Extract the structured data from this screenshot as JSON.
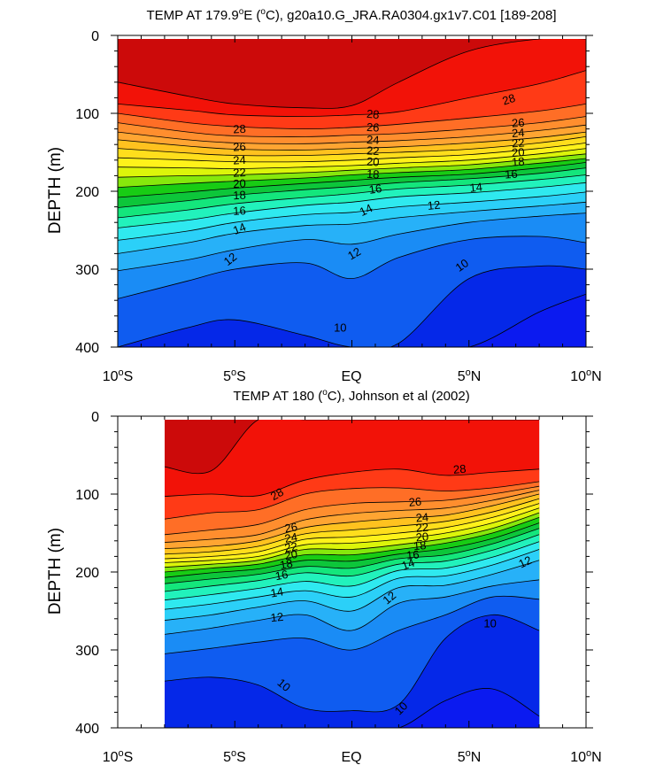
{
  "chart_data": [
    {
      "type": "contour",
      "title": "TEMP AT 179.9°E (°C), g20a10.G_JRA.RA0304.gx1v7.C01 [189-208]",
      "title_parts": {
        "pre": "TEMP AT 179.9",
        "deg1": "o",
        "mid": "E (",
        "deg2": "o",
        "post": "C), g20a10.G_JRA.RA0304.gx1v7.C01 [189-208]"
      },
      "xlabel": "",
      "ylabel": "DEPTH (m)",
      "xlim": [
        -10,
        10
      ],
      "ylim": [
        400,
        0
      ],
      "xticks": [
        {
          "value": -10,
          "num": "10",
          "deg": "o",
          "hem": "S"
        },
        {
          "value": -5,
          "num": "5",
          "deg": "o",
          "hem": "S"
        },
        {
          "value": 0,
          "num": "EQ",
          "deg": "",
          "hem": ""
        },
        {
          "value": 5,
          "num": "5",
          "deg": "o",
          "hem": "N"
        },
        {
          "value": 10,
          "num": "10",
          "deg": "o",
          "hem": "N"
        }
      ],
      "yticks": [
        "0",
        "100",
        "200",
        "300",
        "400"
      ],
      "ytick_values": [
        0,
        100,
        200,
        300,
        400
      ],
      "data_lon_range": [
        -10,
        10
      ],
      "contour_levels": [
        10,
        11,
        12,
        13,
        14,
        15,
        16,
        17,
        18,
        19,
        20,
        21,
        22,
        23,
        24,
        25,
        26,
        27,
        28,
        29
      ],
      "isotherm_depths_m": {
        "lon": [
          -10,
          -7,
          -5,
          -2,
          0,
          2,
          5,
          8,
          10
        ],
        "levels": {
          "29": [
            60,
            78,
            88,
            93,
            90,
            60,
            20,
            0,
            0
          ],
          "28": [
            88,
            96,
            102,
            104,
            102,
            98,
            80,
            62,
            45
          ],
          "27": [
            100,
            112,
            117,
            120,
            118,
            114,
            106,
            97,
            88
          ],
          "26": [
            112,
            124,
            129,
            130,
            128,
            126,
            120,
            112,
            104
          ],
          "25": [
            124,
            134,
            138,
            139,
            137,
            135,
            130,
            122,
            115
          ],
          "24": [
            134,
            142,
            146,
            147,
            145,
            143,
            138,
            131,
            124
          ],
          "23": [
            145,
            151,
            154,
            154,
            152,
            150,
            146,
            138,
            130
          ],
          "22": [
            157,
            160,
            162,
            162,
            160,
            157,
            153,
            145,
            138
          ],
          "21": [
            169,
            170,
            171,
            169,
            167,
            164,
            160,
            152,
            145
          ],
          "20": [
            182,
            180,
            179,
            176,
            173,
            170,
            166,
            158,
            152
          ],
          "19": [
            195,
            190,
            187,
            183,
            179,
            176,
            172,
            164,
            158
          ],
          "18": [
            208,
            201,
            196,
            190,
            186,
            182,
            178,
            170,
            163
          ],
          "17": [
            221,
            212,
            205,
            198,
            194,
            189,
            184,
            177,
            170
          ],
          "16": [
            234,
            224,
            216,
            208,
            203,
            197,
            192,
            185,
            179
          ],
          "15": [
            247,
            237,
            228,
            218,
            214,
            207,
            202,
            195,
            189
          ],
          "14": [
            263,
            251,
            240,
            230,
            227,
            220,
            214,
            207,
            201
          ],
          "13": [
            280,
            266,
            254,
            244,
            242,
            234,
            226,
            219,
            214
          ],
          "12": [
            302,
            288,
            275,
            262,
            268,
            255,
            240,
            232,
            228
          ],
          "11": [
            338,
            315,
            300,
            292,
            312,
            285,
            262,
            258,
            266
          ],
          "10": [
            400,
            375,
            365,
            385,
            400,
            395,
            312,
            296,
            300
          ],
          "9": [
            400,
            400,
            400,
            400,
            400,
            400,
            400,
            355,
            332
          ]
        }
      },
      "contour_labels": [
        {
          "text": "28",
          "lon": -4.8,
          "depth": 120,
          "angle": -3
        },
        {
          "text": "26",
          "lon": -4.8,
          "depth": 143,
          "angle": -3
        },
        {
          "text": "24",
          "lon": -4.8,
          "depth": 160,
          "angle": -3
        },
        {
          "text": "22",
          "lon": -4.8,
          "depth": 176,
          "angle": -3
        },
        {
          "text": "20",
          "lon": -4.8,
          "depth": 190,
          "angle": -3
        },
        {
          "text": "18",
          "lon": -4.8,
          "depth": 205,
          "angle": -3
        },
        {
          "text": "16",
          "lon": -4.8,
          "depth": 225,
          "angle": -3
        },
        {
          "text": "14",
          "lon": -4.8,
          "depth": 248,
          "angle": -22
        },
        {
          "text": "12",
          "lon": -5.2,
          "depth": 287,
          "angle": -38
        },
        {
          "text": "28",
          "lon": 0.9,
          "depth": 101,
          "angle": 5
        },
        {
          "text": "26",
          "lon": 0.9,
          "depth": 118,
          "angle": 3
        },
        {
          "text": "24",
          "lon": 0.9,
          "depth": 134,
          "angle": 3
        },
        {
          "text": "22",
          "lon": 0.9,
          "depth": 148,
          "angle": 3
        },
        {
          "text": "20",
          "lon": 0.9,
          "depth": 162,
          "angle": 3
        },
        {
          "text": "18",
          "lon": 0.9,
          "depth": 178,
          "angle": 3
        },
        {
          "text": "16",
          "lon": 1.0,
          "depth": 197,
          "angle": -8
        },
        {
          "text": "14",
          "lon": 0.6,
          "depth": 224,
          "angle": -25
        },
        {
          "text": "12",
          "lon": 0.1,
          "depth": 280,
          "angle": -30
        },
        {
          "text": "10",
          "lon": -0.5,
          "depth": 375,
          "angle": 0
        },
        {
          "text": "28",
          "lon": 6.7,
          "depth": 82,
          "angle": -18
        },
        {
          "text": "26",
          "lon": 7.1,
          "depth": 112,
          "angle": -4
        },
        {
          "text": "24",
          "lon": 7.1,
          "depth": 125,
          "angle": -4
        },
        {
          "text": "22",
          "lon": 7.1,
          "depth": 138,
          "angle": -4
        },
        {
          "text": "20",
          "lon": 7.1,
          "depth": 150,
          "angle": -4
        },
        {
          "text": "18",
          "lon": 7.1,
          "depth": 162,
          "angle": -4
        },
        {
          "text": "16",
          "lon": 6.8,
          "depth": 178,
          "angle": -4
        },
        {
          "text": "14",
          "lon": 5.3,
          "depth": 195,
          "angle": -6
        },
        {
          "text": "12",
          "lon": 3.5,
          "depth": 218,
          "angle": -6
        },
        {
          "text": "10",
          "lon": 4.7,
          "depth": 295,
          "angle": -35
        }
      ]
    },
    {
      "type": "contour",
      "title": "TEMP AT 180 (°C), Johnson et al (2002)",
      "title_parts": {
        "pre": "TEMP AT 180 (",
        "deg1": "o",
        "mid": "C), Johnson et al (2002)",
        "deg2": "",
        "post": ""
      },
      "xlabel": "",
      "ylabel": "DEPTH (m)",
      "xlim": [
        -10,
        10
      ],
      "ylim": [
        400,
        0
      ],
      "xticks": [
        {
          "value": -10,
          "num": "10",
          "deg": "o",
          "hem": "S"
        },
        {
          "value": -5,
          "num": "5",
          "deg": "o",
          "hem": "S"
        },
        {
          "value": 0,
          "num": "EQ",
          "deg": "",
          "hem": ""
        },
        {
          "value": 5,
          "num": "5",
          "deg": "o",
          "hem": "N"
        },
        {
          "value": 10,
          "num": "10",
          "deg": "o",
          "hem": "N"
        }
      ],
      "yticks": [
        "0",
        "100",
        "200",
        "300",
        "400"
      ],
      "ytick_values": [
        0,
        100,
        200,
        300,
        400
      ],
      "data_lon_range": [
        -8,
        8
      ],
      "contour_levels": [
        10,
        11,
        12,
        13,
        14,
        15,
        16,
        17,
        18,
        19,
        20,
        21,
        22,
        23,
        24,
        25,
        26,
        27,
        28,
        29
      ],
      "isotherm_depths_m": {
        "lon": [
          -8,
          -6,
          -4,
          -2,
          0,
          2,
          4,
          6,
          8
        ],
        "levels": {
          "29": [
            65,
            70,
            0,
            0,
            0,
            0,
            0,
            0,
            0
          ],
          "28": [
            103,
            100,
            102,
            82,
            72,
            68,
            76,
            72,
            68
          ],
          "27": [
            132,
            124,
            120,
            100,
            93,
            92,
            96,
            92,
            84
          ],
          "26": [
            152,
            146,
            139,
            120,
            112,
            110,
            108,
            100,
            90
          ],
          "25": [
            162,
            158,
            152,
            133,
            125,
            121,
            118,
            108,
            95
          ],
          "24": [
            170,
            167,
            160,
            143,
            136,
            131,
            127,
            115,
            100
          ],
          "23": [
            177,
            174,
            167,
            151,
            146,
            141,
            135,
            123,
            106
          ],
          "22": [
            183,
            180,
            174,
            158,
            155,
            150,
            143,
            130,
            112
          ],
          "21": [
            188,
            185,
            180,
            165,
            163,
            158,
            150,
            137,
            118
          ],
          "20": [
            194,
            190,
            185,
            171,
            171,
            165,
            157,
            144,
            124
          ],
          "19": [
            200,
            195,
            190,
            178,
            178,
            171,
            163,
            150,
            130
          ],
          "18": [
            207,
            201,
            196,
            185,
            186,
            177,
            170,
            157,
            137
          ],
          "17": [
            215,
            209,
            203,
            193,
            195,
            183,
            178,
            164,
            144
          ],
          "16": [
            225,
            218,
            211,
            201,
            205,
            190,
            186,
            172,
            152
          ],
          "15": [
            236,
            229,
            221,
            212,
            218,
            198,
            195,
            181,
            161
          ],
          "14": [
            248,
            241,
            232,
            224,
            232,
            208,
            205,
            191,
            171
          ],
          "13": [
            262,
            255,
            245,
            237,
            250,
            220,
            217,
            203,
            185
          ],
          "12": [
            280,
            272,
            262,
            255,
            275,
            240,
            232,
            218,
            210
          ],
          "11": [
            305,
            298,
            290,
            285,
            300,
            275,
            255,
            232,
            235
          ],
          "10": [
            340,
            335,
            345,
            375,
            378,
            370,
            285,
            255,
            275
          ],
          "9": [
            400,
            400,
            400,
            400,
            400,
            400,
            365,
            350,
            385
          ]
        }
      },
      "contour_labels": [
        {
          "text": "28",
          "lon": -3.2,
          "depth": 100,
          "angle": -30
        },
        {
          "text": "26",
          "lon": -2.6,
          "depth": 143,
          "angle": -10
        },
        {
          "text": "24",
          "lon": -2.6,
          "depth": 156,
          "angle": -10
        },
        {
          "text": "22",
          "lon": -2.6,
          "depth": 168,
          "angle": -10
        },
        {
          "text": "20",
          "lon": -2.6,
          "depth": 178,
          "angle": -10
        },
        {
          "text": "18",
          "lon": -2.8,
          "depth": 190,
          "angle": -10
        },
        {
          "text": "16",
          "lon": -3.0,
          "depth": 204,
          "angle": -10
        },
        {
          "text": "14",
          "lon": -3.2,
          "depth": 226,
          "angle": -10
        },
        {
          "text": "12",
          "lon": -3.2,
          "depth": 258,
          "angle": -6
        },
        {
          "text": "10",
          "lon": -2.9,
          "depth": 345,
          "angle": 40
        },
        {
          "text": "28",
          "lon": 4.6,
          "depth": 68,
          "angle": -5
        },
        {
          "text": "26",
          "lon": 2.7,
          "depth": 110,
          "angle": -5
        },
        {
          "text": "24",
          "lon": 3.0,
          "depth": 130,
          "angle": -5
        },
        {
          "text": "22",
          "lon": 3.0,
          "depth": 143,
          "angle": -5
        },
        {
          "text": "20",
          "lon": 3.0,
          "depth": 155,
          "angle": -5
        },
        {
          "text": "18",
          "lon": 2.9,
          "depth": 166,
          "angle": -5
        },
        {
          "text": "16",
          "lon": 2.6,
          "depth": 178,
          "angle": -5
        },
        {
          "text": "14",
          "lon": 2.4,
          "depth": 190,
          "angle": -20
        },
        {
          "text": "12",
          "lon": 1.6,
          "depth": 233,
          "angle": -40
        },
        {
          "text": "12",
          "lon": 7.4,
          "depth": 187,
          "angle": -25
        },
        {
          "text": "10",
          "lon": 5.9,
          "depth": 266,
          "angle": 0
        },
        {
          "text": "10",
          "lon": 2.1,
          "depth": 375,
          "angle": -45
        }
      ]
    }
  ]
}
